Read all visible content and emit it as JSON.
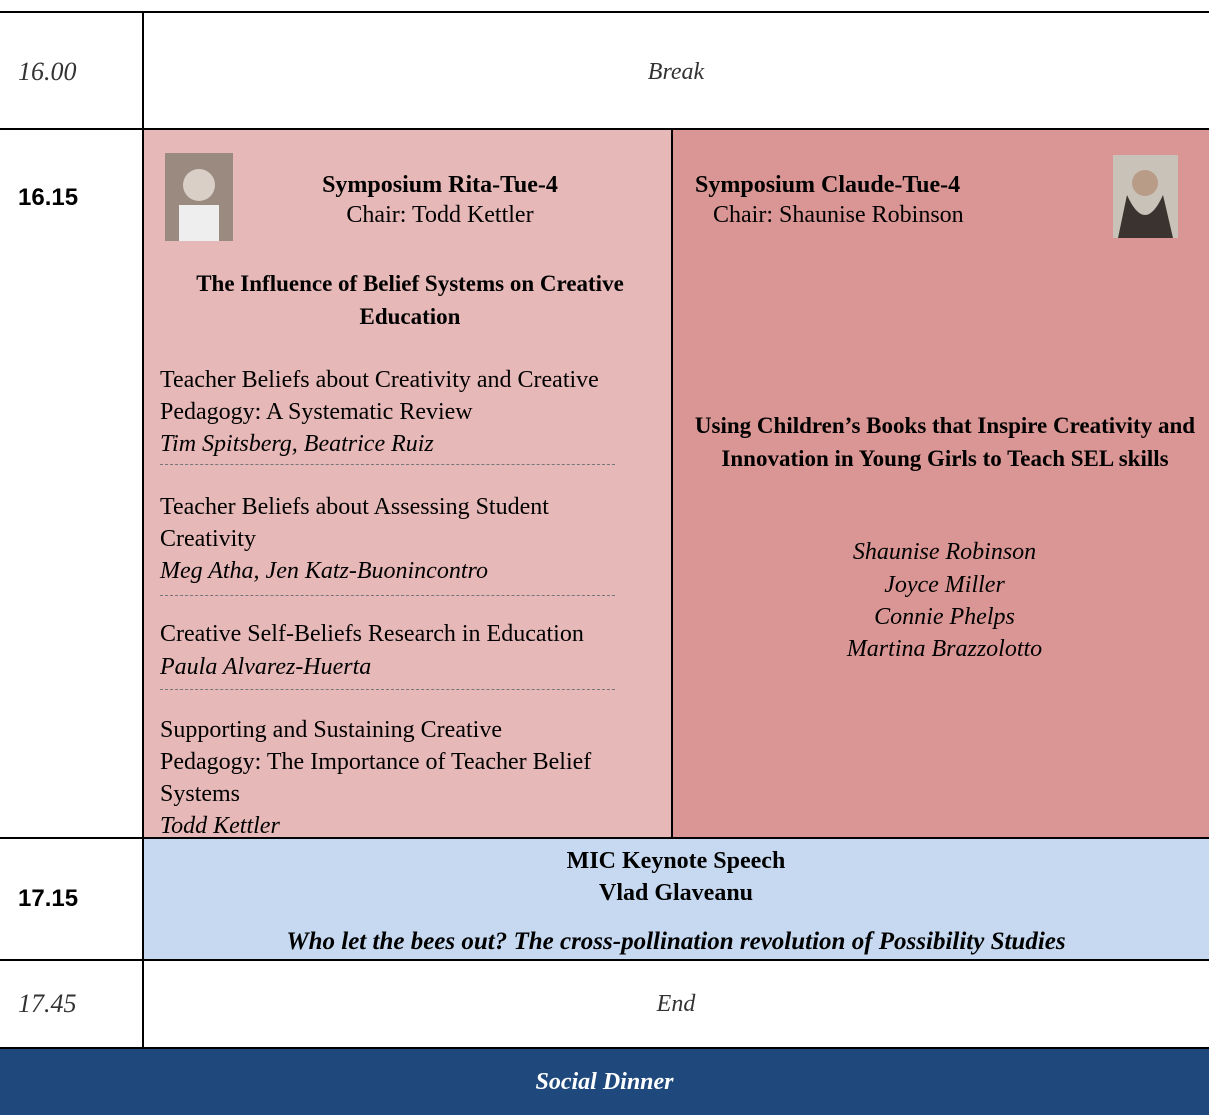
{
  "schedule": {
    "rows": [
      {
        "time": "16.00",
        "event": "Break"
      },
      {
        "time": "16.15",
        "sessions": [
          {
            "title": "Symposium Rita-Tue-4",
            "chair": "Chair: Todd Kettler",
            "theme": "The Influence of Belief Systems on Creative Education",
            "papers": [
              {
                "title": "Teacher Beliefs about Creativity and Creative Pedagogy: A Systematic Review",
                "authors": "Tim Spitsberg, Beatrice Ruiz"
              },
              {
                "title": "Teacher Beliefs about Assessing Student Creativity",
                "authors": "Meg Atha, Jen Katz-Buonincontro"
              },
              {
                "title": "Creative Self-Beliefs Research in Education",
                "authors": "Paula Alvarez-Huerta"
              },
              {
                "title": "Supporting and Sustaining Creative Pedagogy: The Importance of Teacher Belief Systems",
                "authors": "Todd Kettler"
              }
            ]
          },
          {
            "title": "Symposium Claude-Tue-4",
            "chair": "Chair: Shaunise Robinson",
            "theme": "Using Children’s Books that Inspire Creativity and Innovation in Young Girls to Teach SEL skills",
            "authors": [
              "Shaunise Robinson",
              "Joyce Miller",
              "Connie Phelps",
              "Martina Brazzolotto"
            ]
          }
        ]
      },
      {
        "time": "17.15",
        "title": "MIC Keynote Speech",
        "speaker": "Vlad Glaveanu",
        "talk": "Who let the bees out? The cross-pollination revolution of Possibility Studies"
      },
      {
        "time": "17.45",
        "event": "End"
      }
    ],
    "footer": "Social Dinner"
  }
}
